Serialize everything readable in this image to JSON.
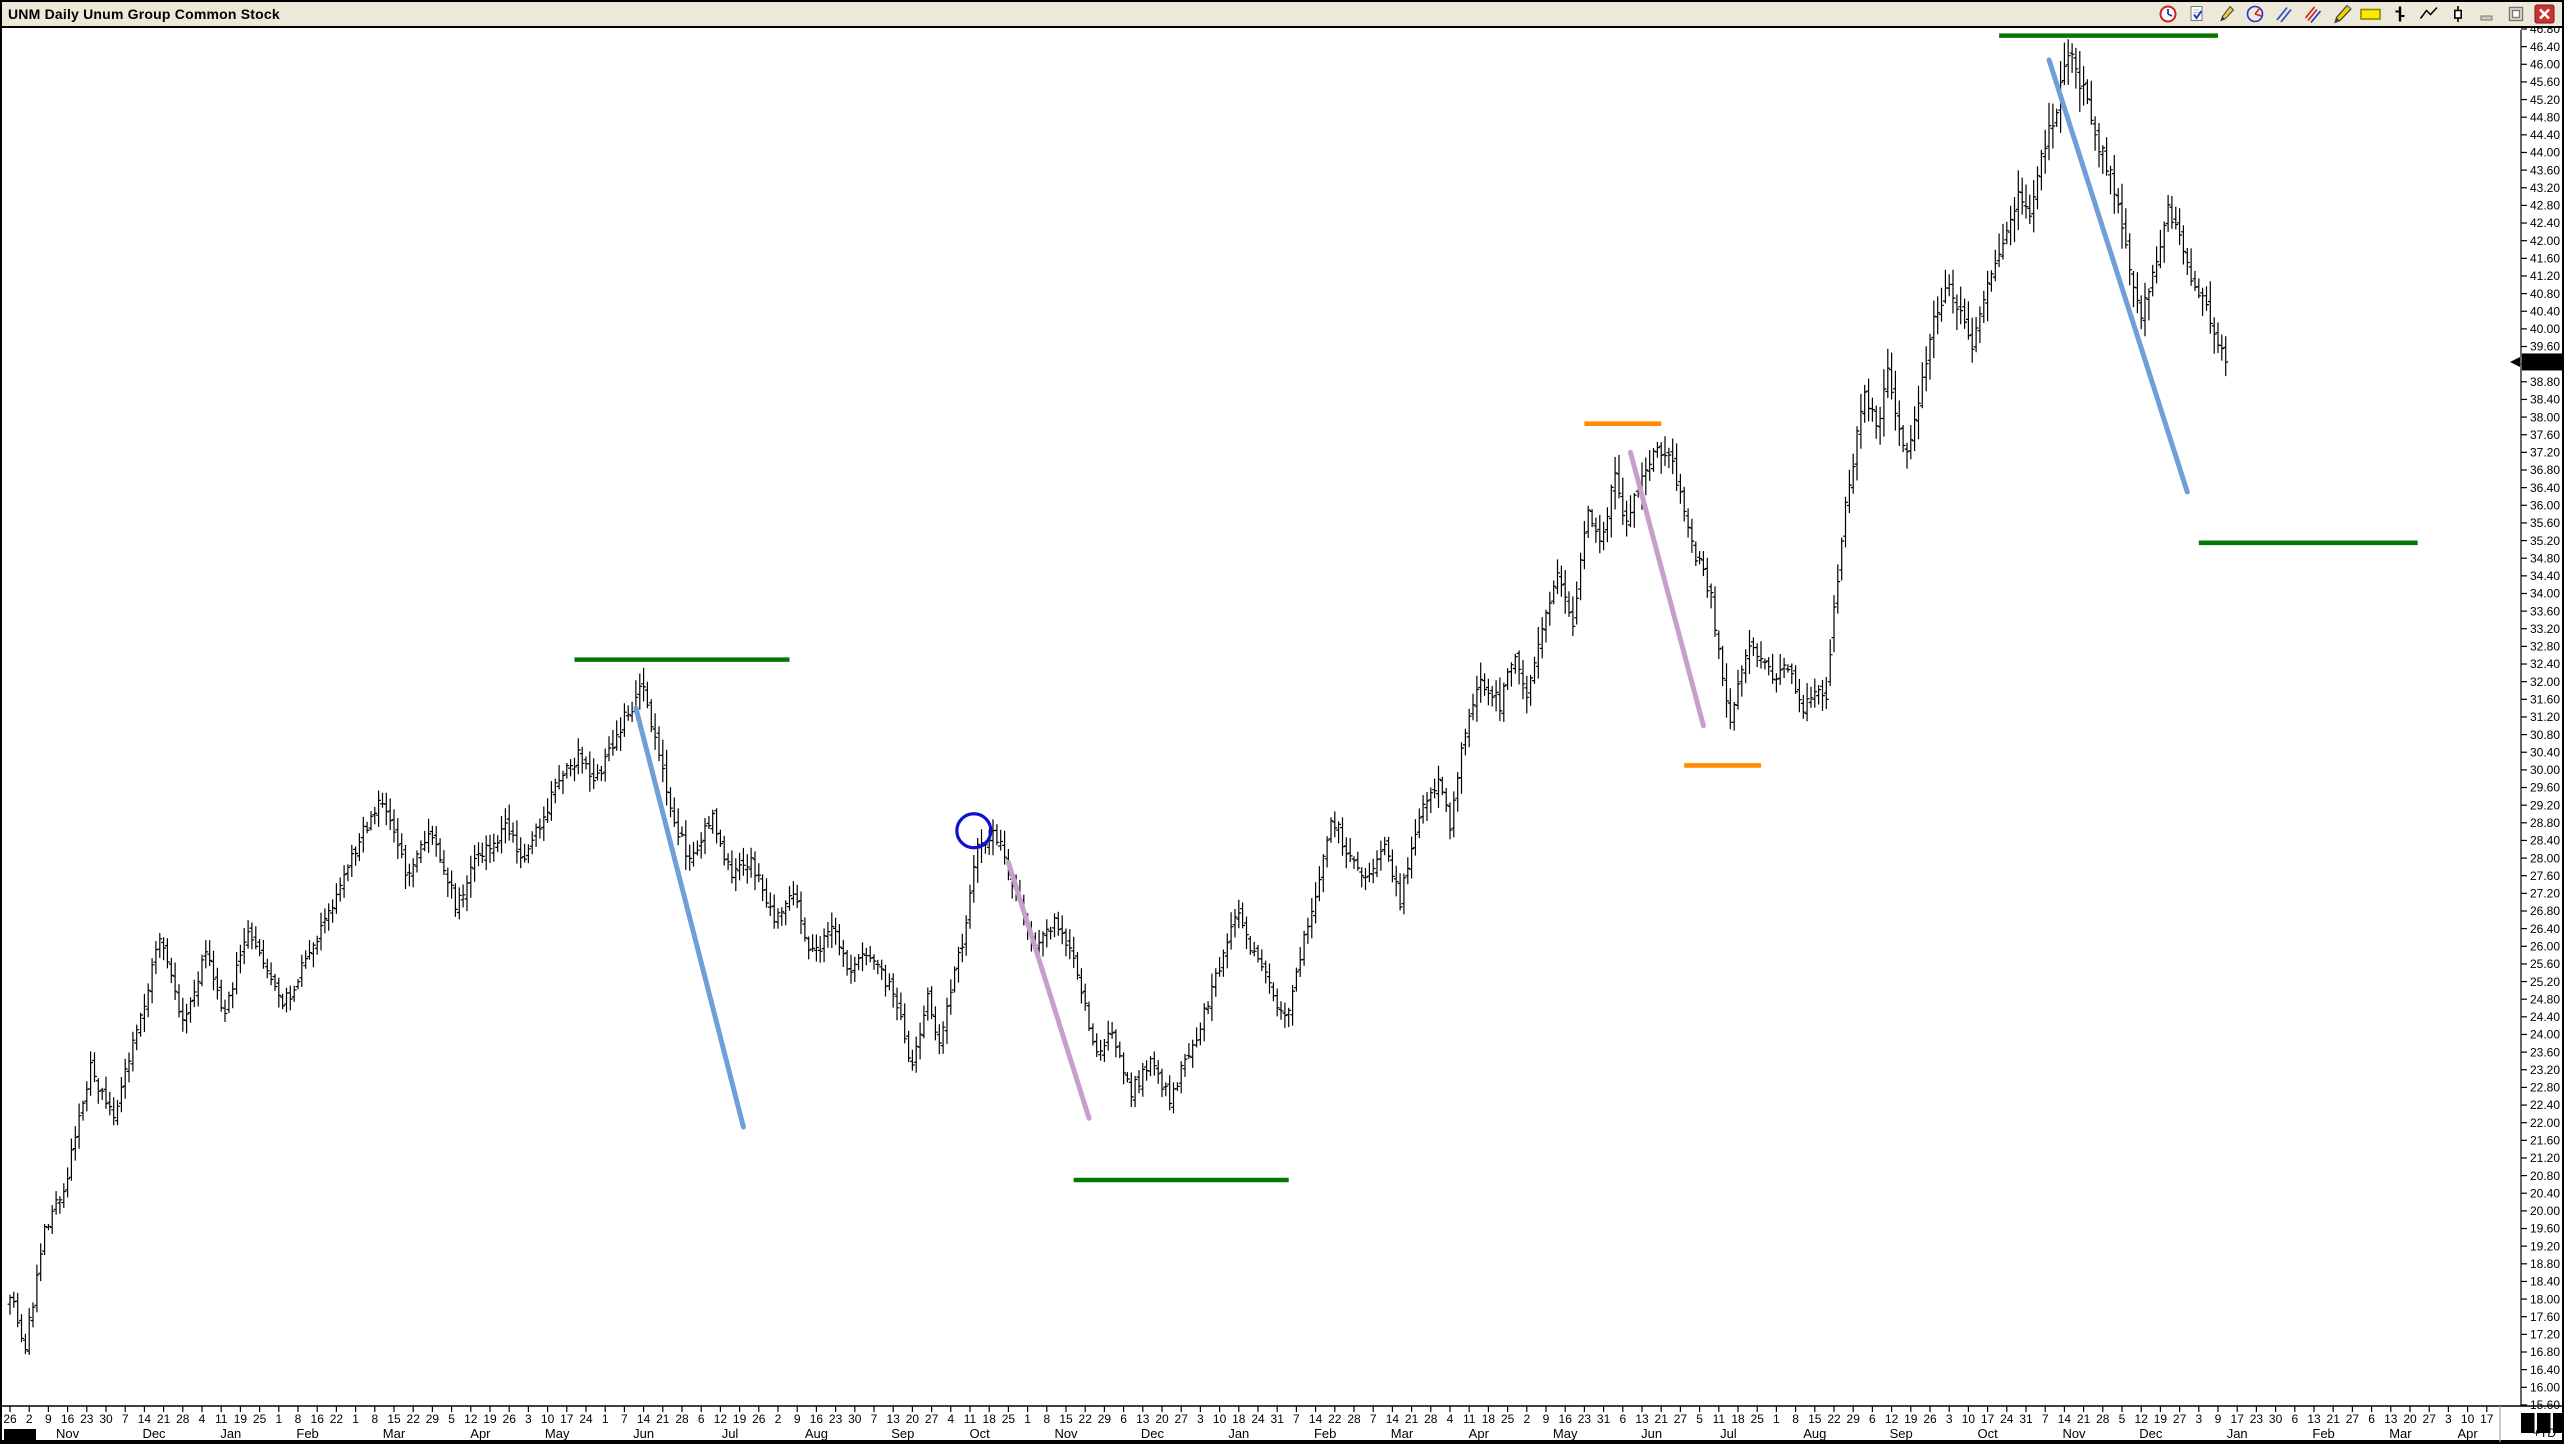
{
  "window": {
    "title": "UNM Daily Unum Group Common Stock",
    "corner_label": "+TD"
  },
  "toolbar": {
    "tools": [
      "clock-tool",
      "notes-tool",
      "pencil-tool",
      "arc-tool",
      "trendline-blue-tool",
      "parallel-lines-tool",
      "highlighter-pencil-tool",
      "highlight-box-tool",
      "bar-style-tool",
      "zigzag-tool",
      "candlestick-tool",
      "minimize-button",
      "restore-button",
      "close-button"
    ]
  },
  "chart_data": {
    "type": "bar",
    "title": "UNM Daily Unum Group Common Stock",
    "symbol": "UNM",
    "timeframe": "Daily",
    "company": "Unum Group Common Stock",
    "bar_style": "OHLC",
    "grid": "off",
    "colors": {
      "bars": "#000000",
      "green_line": "#047804",
      "orange_line": "#FF8C00",
      "blue_trend": "#6F9FD8",
      "purple_trend": "#C79FCB",
      "circle": "#1010D0",
      "last_price_bg": "#000000",
      "last_price_fg": "#FFFFFF"
    },
    "y_axis": {
      "min": 15.6,
      "max": 46.8,
      "step": 0.4,
      "side": "right"
    },
    "last_price": "39.25",
    "x_axis": {
      "week_labels": [
        "26",
        "2",
        "9",
        "16",
        "23",
        "30",
        "7",
        "14",
        "21",
        "28",
        "4",
        "11",
        "19",
        "25",
        "1",
        "8",
        "16",
        "22",
        "1",
        "8",
        "15",
        "22",
        "29",
        "5",
        "12",
        "19",
        "26",
        "3",
        "10",
        "17",
        "24",
        "1",
        "7",
        "14",
        "21",
        "28",
        "6",
        "12",
        "19",
        "26",
        "2",
        "9",
        "16",
        "23",
        "30",
        "7",
        "13",
        "20",
        "27",
        "4",
        "11",
        "18",
        "25",
        "1",
        "8",
        "15",
        "22",
        "29",
        "6",
        "13",
        "20",
        "27",
        "3",
        "10",
        "18",
        "24",
        "31",
        "7",
        "14",
        "22",
        "28",
        "7",
        "14",
        "21",
        "28",
        "4",
        "11",
        "18",
        "25",
        "2",
        "9",
        "16",
        "23",
        "31",
        "6",
        "13",
        "21",
        "27",
        "5",
        "11",
        "18",
        "25",
        "1",
        "8",
        "15",
        "22",
        "29",
        "6",
        "12",
        "19",
        "26",
        "3",
        "10",
        "17",
        "24",
        "31",
        "7",
        "14",
        "21",
        "28",
        "5",
        "12",
        "19",
        "27",
        "3",
        "9",
        "17",
        "23",
        "30",
        "6",
        "13",
        "21",
        "27",
        "6",
        "13",
        "20",
        "27",
        "3",
        "10",
        "17"
      ],
      "month_groups": [
        {
          "label": "Nov",
          "start": 1,
          "count": 5
        },
        {
          "label": "Dec",
          "start": 6,
          "count": 4
        },
        {
          "label": "Jan",
          "start": 10,
          "count": 4
        },
        {
          "label": "Feb",
          "start": 14,
          "count": 4
        },
        {
          "label": "Mar",
          "start": 18,
          "count": 5
        },
        {
          "label": "Apr",
          "start": 23,
          "count": 4
        },
        {
          "label": "May",
          "start": 27,
          "count": 4
        },
        {
          "label": "Jun",
          "start": 31,
          "count": 5
        },
        {
          "label": "Jul",
          "start": 36,
          "count": 4
        },
        {
          "label": "Aug",
          "start": 40,
          "count": 5
        },
        {
          "label": "Sep",
          "start": 45,
          "count": 4
        },
        {
          "label": "Oct",
          "start": 49,
          "count": 4
        },
        {
          "label": "Nov",
          "start": 53,
          "count": 5
        },
        {
          "label": "Dec",
          "start": 58,
          "count": 4
        },
        {
          "label": "Jan",
          "start": 62,
          "count": 5
        },
        {
          "label": "Feb",
          "start": 67,
          "count": 4
        },
        {
          "label": "Mar",
          "start": 71,
          "count": 4
        },
        {
          "label": "Apr",
          "start": 75,
          "count": 4
        },
        {
          "label": "May",
          "start": 79,
          "count": 5
        },
        {
          "label": "Jun",
          "start": 84,
          "count": 4
        },
        {
          "label": "Jul",
          "start": 88,
          "count": 4
        },
        {
          "label": "Aug",
          "start": 92,
          "count": 5
        },
        {
          "label": "Sep",
          "start": 97,
          "count": 4
        },
        {
          "label": "Oct",
          "start": 101,
          "count": 5
        },
        {
          "label": "Nov",
          "start": 106,
          "count": 4
        },
        {
          "label": "Dec",
          "start": 110,
          "count": 4
        },
        {
          "label": "Jan",
          "start": 114,
          "count": 5
        },
        {
          "label": "Feb",
          "start": 119,
          "count": 4
        },
        {
          "label": "Mar",
          "start": 123,
          "count": 4
        },
        {
          "label": "Apr",
          "start": 127,
          "count": 3
        }
      ]
    },
    "bar_count": 578,
    "price_path": [
      [
        0,
        18.2
      ],
      [
        4,
        16.9
      ],
      [
        9,
        19.5
      ],
      [
        14,
        20.5
      ],
      [
        21,
        23.2
      ],
      [
        27,
        22.0
      ],
      [
        39,
        26.2
      ],
      [
        45,
        24.2
      ],
      [
        51,
        25.8
      ],
      [
        56,
        24.4
      ],
      [
        62,
        26.5
      ],
      [
        71,
        24.6
      ],
      [
        79,
        26.0
      ],
      [
        86,
        27.3
      ],
      [
        92,
        28.6
      ],
      [
        97,
        29.3
      ],
      [
        103,
        27.7
      ],
      [
        110,
        28.5
      ],
      [
        116,
        27.0
      ],
      [
        122,
        28.0
      ],
      [
        129,
        28.7
      ],
      [
        134,
        27.9
      ],
      [
        142,
        29.6
      ],
      [
        148,
        30.3
      ],
      [
        153,
        29.8
      ],
      [
        159,
        31.0
      ],
      [
        165,
        31.9
      ],
      [
        170,
        30.0
      ],
      [
        174,
        28.6
      ],
      [
        177,
        28.0
      ],
      [
        183,
        28.9
      ],
      [
        188,
        27.6
      ],
      [
        193,
        27.9
      ],
      [
        199,
        26.6
      ],
      [
        204,
        27.1
      ],
      [
        209,
        25.8
      ],
      [
        214,
        26.4
      ],
      [
        219,
        25.4
      ],
      [
        224,
        25.9
      ],
      [
        230,
        24.9
      ],
      [
        235,
        23.3
      ],
      [
        239,
        24.9
      ],
      [
        242,
        23.8
      ],
      [
        248,
        26.1
      ],
      [
        252,
        28.3
      ],
      [
        257,
        28.5
      ],
      [
        262,
        27.2
      ],
      [
        267,
        26.0
      ],
      [
        272,
        26.5
      ],
      [
        277,
        25.7
      ],
      [
        283,
        23.6
      ],
      [
        287,
        24.0
      ],
      [
        292,
        22.7
      ],
      [
        297,
        23.4
      ],
      [
        302,
        22.5
      ],
      [
        309,
        24.0
      ],
      [
        315,
        25.5
      ],
      [
        319,
        26.8
      ],
      [
        323,
        26.0
      ],
      [
        329,
        24.9
      ],
      [
        332,
        24.3
      ],
      [
        340,
        27.2
      ],
      [
        344,
        29.0
      ],
      [
        349,
        28.0
      ],
      [
        353,
        27.4
      ],
      [
        358,
        28.4
      ],
      [
        362,
        27.0
      ],
      [
        367,
        29.0
      ],
      [
        372,
        29.7
      ],
      [
        375,
        28.7
      ],
      [
        379,
        31.0
      ],
      [
        383,
        32.0
      ],
      [
        388,
        31.5
      ],
      [
        392,
        32.6
      ],
      [
        395,
        31.7
      ],
      [
        400,
        33.5
      ],
      [
        403,
        34.6
      ],
      [
        407,
        33.4
      ],
      [
        411,
        36.0
      ],
      [
        414,
        35.1
      ],
      [
        418,
        36.7
      ],
      [
        420,
        35.6
      ],
      [
        424,
        36.3
      ],
      [
        428,
        37.2
      ],
      [
        432,
        37.3
      ],
      [
        436,
        35.8
      ],
      [
        439,
        34.9
      ],
      [
        443,
        33.9
      ],
      [
        448,
        31.0
      ],
      [
        451,
        32.3
      ],
      [
        454,
        32.9
      ],
      [
        459,
        32.0
      ],
      [
        463,
        32.4
      ],
      [
        467,
        31.4
      ],
      [
        470,
        31.9
      ],
      [
        473,
        31.6
      ],
      [
        475,
        33.6
      ],
      [
        478,
        35.9
      ],
      [
        480,
        37.0
      ],
      [
        483,
        38.6
      ],
      [
        486,
        37.7
      ],
      [
        489,
        39.0
      ],
      [
        491,
        38.1
      ],
      [
        494,
        37.2
      ],
      [
        497,
        38.4
      ],
      [
        501,
        40.2
      ],
      [
        505,
        41.0
      ],
      [
        508,
        40.4
      ],
      [
        511,
        39.5
      ],
      [
        514,
        40.7
      ],
      [
        519,
        42.0
      ],
      [
        523,
        43.1
      ],
      [
        526,
        42.5
      ],
      [
        529,
        44.0
      ],
      [
        533,
        45.0
      ],
      [
        536,
        46.3
      ],
      [
        540,
        45.4
      ],
      [
        543,
        44.4
      ],
      [
        547,
        43.5
      ],
      [
        550,
        42.3
      ],
      [
        553,
        41.1
      ],
      [
        555,
        40.2
      ],
      [
        559,
        41.6
      ],
      [
        562,
        42.8
      ],
      [
        565,
        42.1
      ],
      [
        568,
        41.2
      ],
      [
        572,
        40.4
      ],
      [
        575,
        39.7
      ],
      [
        577,
        39.25
      ]
    ],
    "annotations": {
      "h_lines": [
        {
          "name": "green-resistance-1",
          "color": "#047804",
          "price": 32.5,
          "from_bar": 147,
          "to_bar": 203
        },
        {
          "name": "green-support-2",
          "color": "#047804",
          "price": 20.7,
          "from_bar": 277,
          "to_bar": 333
        },
        {
          "name": "green-resistance-3",
          "color": "#047804",
          "price": 46.65,
          "from_bar": 518,
          "to_bar": 575
        },
        {
          "name": "green-support-4",
          "color": "#047804",
          "price": 35.15,
          "from_bar": 570,
          "to_bar": 627
        },
        {
          "name": "orange-resistance-1",
          "color": "#FF8C00",
          "price": 37.85,
          "from_bar": 410,
          "to_bar": 430
        },
        {
          "name": "orange-support-2",
          "color": "#FF8C00",
          "price": 30.1,
          "from_bar": 436,
          "to_bar": 456
        }
      ],
      "trend_lines": [
        {
          "name": "blue-downtrend-1",
          "color": "#6F9FD8",
          "from": [
            163,
            31.4
          ],
          "to": [
            191,
            21.9
          ]
        },
        {
          "name": "purple-downtrend-1",
          "color": "#C79FCB",
          "from": [
            260,
            27.9
          ],
          "to": [
            281,
            22.1
          ]
        },
        {
          "name": "purple-downtrend-2",
          "color": "#C79FCB",
          "from": [
            422,
            37.2
          ],
          "to": [
            441,
            31.0
          ]
        },
        {
          "name": "blue-downtrend-2",
          "color": "#6F9FD8",
          "from": [
            531,
            46.1
          ],
          "to": [
            567,
            36.3
          ]
        }
      ],
      "circle": {
        "name": "blue-circle-highlight",
        "color": "#1010D0",
        "bar": 251,
        "price": 28.62,
        "radius_px": 17
      }
    }
  }
}
